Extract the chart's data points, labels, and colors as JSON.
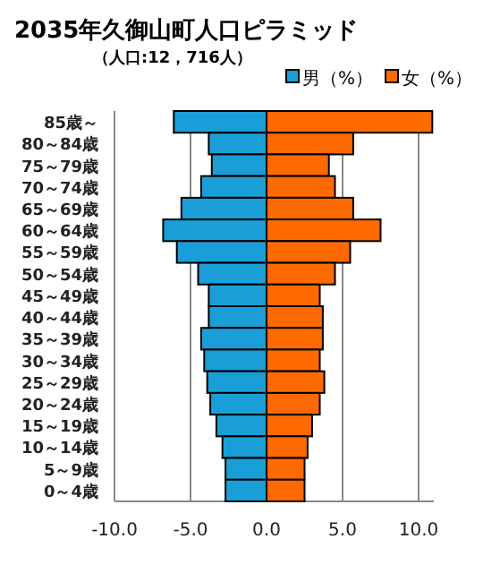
{
  "chart_data": {
    "type": "bar",
    "orientation": "horizontal",
    "title": "2035年久御山町人口ピラミッド",
    "subtitle": "（人口:12，716人）",
    "categories": [
      "85歳～",
      "80～84歳",
      "75～79歳",
      "70～74歳",
      "65～69歳",
      "60～64歳",
      "55～59歳",
      "50～54歳",
      "45～49歳",
      "40～44歳",
      "35～39歳",
      "30～34歳",
      "25～29歳",
      "20～24歳",
      "15～19歳",
      "10～14歳",
      "5～9歳",
      "0～4歳"
    ],
    "series": [
      {
        "name": "男（%）",
        "color": "#1a9ed8",
        "values": [
          -6.1,
          -3.8,
          -3.6,
          -4.3,
          -5.6,
          -6.8,
          -5.9,
          -4.5,
          -3.8,
          -3.8,
          -4.3,
          -4.1,
          -3.9,
          -3.7,
          -3.3,
          -2.9,
          -2.7,
          -2.7
        ]
      },
      {
        "name": "女（%）",
        "color": "#ff6a00",
        "values": [
          10.9,
          5.7,
          4.1,
          4.5,
          5.7,
          7.5,
          5.5,
          4.5,
          3.5,
          3.7,
          3.7,
          3.5,
          3.8,
          3.5,
          3.0,
          2.7,
          2.5,
          2.5
        ]
      }
    ],
    "xlim": [
      -10,
      11
    ],
    "xticks": [
      {
        "value": -10,
        "label": "-10.0"
      },
      {
        "value": -5,
        "label": "-5.0"
      },
      {
        "value": 0,
        "label": "0.0"
      },
      {
        "value": 5,
        "label": "5.0"
      },
      {
        "value": 10,
        "label": "10.0"
      }
    ],
    "stacked": true,
    "grid": "x",
    "legend": "top right"
  }
}
